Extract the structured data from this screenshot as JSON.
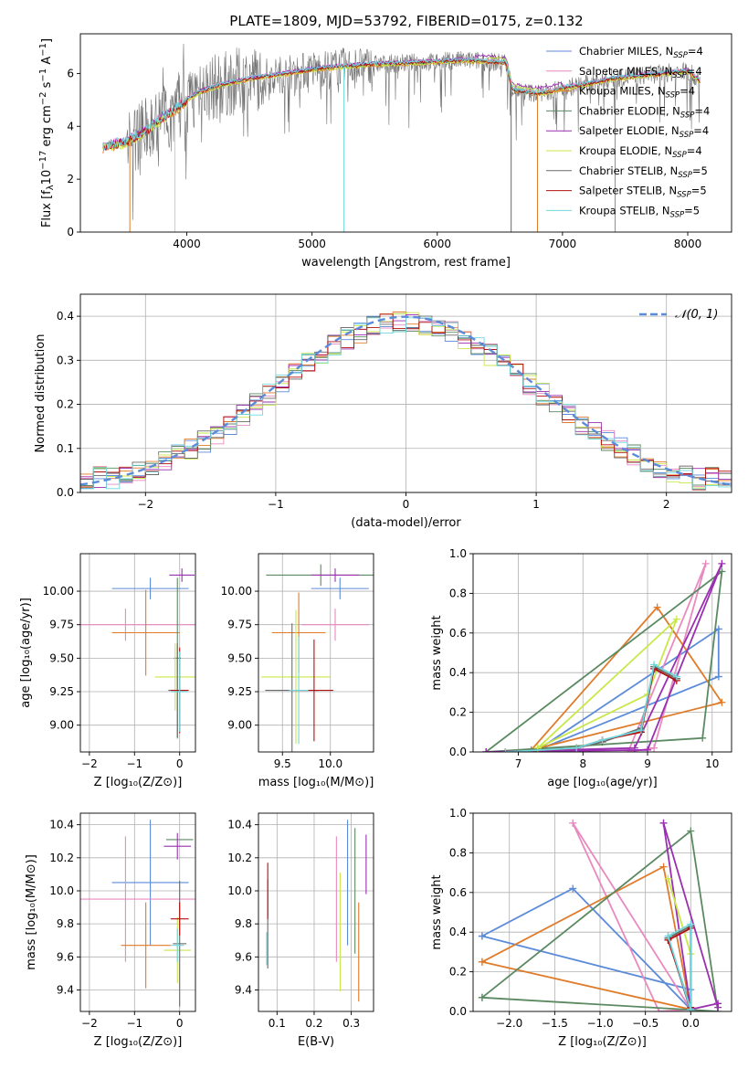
{
  "title": "PLATE=1809, MJD=53792, FIBERID=0175, z=0.132",
  "colors": {
    "chabrier_miles": "#5b8bd9",
    "salpeter_miles": "#e889c0",
    "kroupa_miles": "#e07b2a",
    "chabrier_elodie": "#5b8a62",
    "salpeter_elodie": "#9a2fb0",
    "kroupa_elodie": "#c8e84a",
    "chabrier_stelib": "#6a6a6a",
    "salpeter_stelib": "#b01010",
    "kroupa_stelib": "#6fd7dc",
    "normal_curve": "#5b8bd9"
  },
  "legend_spectrum": [
    {
      "name": "Chabrier MILES, N",
      "sub": "SSP",
      "tail": "=4",
      "color_key": "chabrier_miles"
    },
    {
      "name": "Salpeter MILES, N",
      "sub": "SSP",
      "tail": "=4",
      "color_key": "salpeter_miles"
    },
    {
      "name": "Kroupa MILES, N",
      "sub": "SSP",
      "tail": "=4",
      "color_key": "kroupa_miles"
    },
    {
      "name": "Chabrier ELODIE, N",
      "sub": "SSP",
      "tail": "=4",
      "color_key": "chabrier_elodie"
    },
    {
      "name": "Salpeter ELODIE, N",
      "sub": "SSP",
      "tail": "=4",
      "color_key": "salpeter_elodie"
    },
    {
      "name": "Kroupa ELODIE, N",
      "sub": "SSP",
      "tail": "=4",
      "color_key": "kroupa_elodie"
    },
    {
      "name": "Chabrier STELIB, N",
      "sub": "SSP",
      "tail": "=5",
      "color_key": "chabrier_stelib"
    },
    {
      "name": "Salpeter STELIB, N",
      "sub": "SSP",
      "tail": "=5",
      "color_key": "salpeter_stelib"
    },
    {
      "name": "Kroupa STELIB, N",
      "sub": "SSP",
      "tail": "=5",
      "color_key": "kroupa_stelib"
    }
  ],
  "legend_hist": {
    "label": "𝒩(0, 1)"
  },
  "chart_data": [
    {
      "id": "spectrum",
      "type": "line",
      "xlabel": "wavelength [Angstrom, rest frame]",
      "ylabel_parts": [
        "Flux [f",
        "λ",
        "10",
        "−17",
        " erg cm",
        "−2",
        " s",
        "−1",
        " A",
        "−1",
        "]"
      ],
      "xlim": [
        3150,
        8350
      ],
      "ylim": [
        0,
        7.5
      ],
      "xticks": [
        4000,
        5000,
        6000,
        7000,
        8000
      ],
      "yticks": [
        0,
        2,
        4,
        6
      ],
      "continuum": {
        "x": [
          3330,
          3400,
          3500,
          3600,
          3700,
          3800,
          3900,
          4000,
          4100,
          4300,
          4500,
          4800,
          5000,
          5200,
          5500,
          5800,
          6000,
          6200,
          6400,
          6550,
          6600,
          6700,
          6800,
          6900,
          7000,
          7200,
          7400,
          7600,
          7800,
          8000,
          8100
        ],
        "y": [
          3.2,
          3.3,
          3.4,
          3.6,
          3.9,
          4.3,
          4.6,
          5.0,
          5.3,
          5.6,
          5.8,
          6.0,
          6.15,
          6.25,
          6.35,
          6.4,
          6.45,
          6.5,
          6.45,
          6.4,
          5.4,
          5.3,
          5.25,
          5.3,
          5.45,
          5.6,
          5.8,
          5.9,
          6.0,
          6.1,
          5.7
        ]
      },
      "drops": [
        {
          "x": 3545,
          "series": "kroupa_miles"
        },
        {
          "x": 3905,
          "series": "kroupa_elodie"
        },
        {
          "x": 5255,
          "series": "kroupa_stelib"
        },
        {
          "x": 6590,
          "series": "chabrier_stelib"
        },
        {
          "x": 6800,
          "series": "kroupa_miles"
        },
        {
          "x": 7420,
          "series": "kroupa_miles"
        }
      ],
      "grid": false
    },
    {
      "id": "residuals",
      "type": "histogram",
      "xlabel": "(data-model)/error",
      "ylabel": "Normed distribution",
      "xlim": [
        -2.5,
        2.5
      ],
      "ylim": [
        0,
        0.45
      ],
      "xticks": [
        -2,
        -1,
        0,
        1,
        2
      ],
      "xtick_labels": [
        "−2",
        "−1",
        "0",
        "1",
        "2"
      ],
      "yticks": [
        0.0,
        0.1,
        0.2,
        0.3,
        0.4
      ],
      "ytick_labels": [
        "0.0",
        "0.1",
        "0.2",
        "0.3",
        "0.4"
      ],
      "bin_width": 0.1,
      "grid": true
    },
    {
      "id": "age_vs_Z",
      "type": "scatter",
      "xlabel": "Z [log₁₀(Z/Z⊙)]",
      "ylabel": "age  [log₁₀(age/yr)]",
      "xlim": [
        -2.2,
        0.35
      ],
      "ylim": [
        8.8,
        10.28
      ],
      "xticks": [
        -2,
        -1,
        0
      ],
      "xtick_labels": [
        "−2",
        "−1",
        "0"
      ],
      "yticks": [
        9.0,
        9.25,
        9.5,
        9.75,
        10.0
      ],
      "ytick_labels": [
        "9.00",
        "9.25",
        "9.50",
        "9.75",
        "10.00"
      ],
      "points": [
        {
          "s": "chabrier_miles",
          "x": -0.65,
          "xe": 0.85,
          "y": 10.02,
          "ye": 0.08
        },
        {
          "s": "salpeter_miles",
          "x": -1.2,
          "xe": 2.3,
          "y": 9.75,
          "ye": 0.12
        },
        {
          "s": "kroupa_miles",
          "x": -0.75,
          "xe": 0.75,
          "y": 9.69,
          "ye": 0.32
        },
        {
          "s": "chabrier_elodie",
          "x": -0.05,
          "xe": 0.08,
          "y": 9.5,
          "ye": 0.6
        },
        {
          "s": "salpeter_elodie",
          "x": 0.05,
          "xe": 0.28,
          "y": 10.12,
          "ye": 0.05
        },
        {
          "s": "kroupa_elodie",
          "x": -0.1,
          "xe": 0.45,
          "y": 9.36,
          "ye": 0.25
        },
        {
          "s": "chabrier_stelib",
          "x": -0.05,
          "xe": 0.2,
          "y": 9.26,
          "ye": 0.35
        },
        {
          "s": "salpeter_stelib",
          "x": 0.0,
          "xe": 0.2,
          "y": 9.26,
          "ye": 0.32
        },
        {
          "s": "kroupa_stelib",
          "x": 0.0,
          "xe": 0.18,
          "y": 9.25,
          "ye": 0.3
        }
      ],
      "grid": true
    },
    {
      "id": "age_vs_mass",
      "type": "scatter",
      "xlabel": "mass [log₁₀(M/M⊙)]",
      "ylabel": "",
      "xlim": [
        9.25,
        10.45
      ],
      "ylim": [
        8.8,
        10.28
      ],
      "xticks": [
        9.5,
        10.0
      ],
      "xtick_labels": [
        "9.5",
        "10.0"
      ],
      "yticks": [
        9.0,
        9.25,
        9.5,
        9.75,
        10.0
      ],
      "ytick_labels": [
        "9.00",
        "9.25",
        "9.50",
        "9.75",
        "10.00"
      ],
      "points": [
        {
          "s": "chabrier_miles",
          "x": 10.1,
          "xe": 0.3,
          "y": 10.02,
          "ye": 0.08
        },
        {
          "s": "salpeter_miles",
          "x": 10.05,
          "xe": 0.35,
          "y": 9.75,
          "ye": 0.12
        },
        {
          "s": "kroupa_miles",
          "x": 9.67,
          "xe": 0.28,
          "y": 9.69,
          "ye": 0.3
        },
        {
          "s": "chabrier_elodie",
          "x": 9.9,
          "xe": 0.57,
          "y": 10.12,
          "ye": 0.08
        },
        {
          "s": "salpeter_elodie",
          "x": 10.05,
          "xe": 0.25,
          "y": 10.12,
          "ye": 0.05
        },
        {
          "s": "kroupa_elodie",
          "x": 9.64,
          "xe": 0.36,
          "y": 9.36,
          "ye": 0.5
        },
        {
          "s": "chabrier_stelib",
          "x": 9.6,
          "xe": 0.28,
          "y": 9.26,
          "ye": 0.5
        },
        {
          "s": "salpeter_stelib",
          "x": 9.83,
          "xe": 0.2,
          "y": 9.26,
          "ye": 0.38
        },
        {
          "s": "kroupa_stelib",
          "x": 9.67,
          "xe": 0.1,
          "y": 9.26,
          "ye": 0.4
        }
      ],
      "grid": true
    },
    {
      "id": "massweight_vs_age",
      "type": "line",
      "xlabel": "age  [log₁₀(age/yr)]",
      "ylabel": "mass weight",
      "xlim": [
        6.3,
        10.3
      ],
      "ylim": [
        0,
        1
      ],
      "xticks": [
        7,
        8,
        9,
        10
      ],
      "yticks": [
        0,
        0.2,
        0.4,
        0.6,
        0.8,
        1.0
      ],
      "ytick_labels": [
        "0.0",
        "0.2",
        "0.4",
        "0.6",
        "0.8",
        "1.0"
      ],
      "series": [
        {
          "s": "chabrier_miles",
          "x": [
            7.3,
            10.1,
            10.1,
            7.3
          ],
          "y": [
            0.01,
            0.62,
            0.38,
            0.01
          ]
        },
        {
          "s": "salpeter_miles",
          "x": [
            8.7,
            9.9,
            9.1,
            8.7
          ],
          "y": [
            0.0,
            0.95,
            0.02,
            0.0
          ]
        },
        {
          "s": "kroupa_miles",
          "x": [
            7.2,
            9.15,
            10.15,
            7.2
          ],
          "y": [
            0.01,
            0.73,
            0.25,
            0.01
          ]
        },
        {
          "s": "chabrier_elodie",
          "x": [
            6.5,
            9.85,
            10.15,
            6.5
          ],
          "y": [
            0.0,
            0.07,
            0.91,
            0.0
          ]
        },
        {
          "s": "salpeter_elodie",
          "x": [
            6.5,
            8.8,
            10.15,
            9.0,
            6.5
          ],
          "y": [
            0.0,
            0.02,
            0.95,
            0.01,
            0.0
          ]
        },
        {
          "s": "kroupa_elodie",
          "x": [
            7.3,
            9.45,
            9.0,
            7.3
          ],
          "y": [
            0.02,
            0.67,
            0.29,
            0.02
          ]
        },
        {
          "s": "chabrier_stelib",
          "x": [
            6.8,
            7.9,
            8.3,
            8.9,
            9.1,
            9.45,
            9.45
          ],
          "y": [
            0.0,
            0.02,
            0.05,
            0.12,
            0.43,
            0.37,
            0.37
          ]
        },
        {
          "s": "salpeter_stelib",
          "x": [
            6.8,
            7.9,
            8.3,
            8.9,
            9.1,
            9.45
          ],
          "y": [
            0.0,
            0.02,
            0.06,
            0.1,
            0.42,
            0.36
          ]
        },
        {
          "s": "kroupa_stelib",
          "x": [
            6.8,
            7.9,
            8.3,
            8.9,
            9.1,
            9.45
          ],
          "y": [
            0.0,
            0.02,
            0.06,
            0.11,
            0.44,
            0.38
          ]
        }
      ],
      "grid": true
    },
    {
      "id": "mass_vs_Z",
      "type": "scatter",
      "xlabel": "Z [log₁₀(Z/Z⊙)]",
      "ylabel": "mass [log₁₀(M/M⊙)]",
      "xlim": [
        -2.2,
        0.35
      ],
      "ylim": [
        9.27,
        10.47
      ],
      "xticks": [
        -2,
        -1,
        0
      ],
      "xtick_labels": [
        "−2",
        "−1",
        "0"
      ],
      "yticks": [
        9.4,
        9.6,
        9.8,
        10.0,
        10.2,
        10.4
      ],
      "ytick_labels": [
        "9.4",
        "9.6",
        "9.8",
        "10.0",
        "10.2",
        "10.4"
      ],
      "points": [
        {
          "s": "chabrier_miles",
          "x": -0.65,
          "xe": 0.85,
          "y": 10.05,
          "ye": 0.38
        },
        {
          "s": "salpeter_miles",
          "x": -1.2,
          "xe": 2.3,
          "y": 9.95,
          "ye": 0.38
        },
        {
          "s": "kroupa_miles",
          "x": -0.75,
          "xe": 0.55,
          "y": 9.67,
          "ye": 0.26
        },
        {
          "s": "chabrier_elodie",
          "x": 0.0,
          "xe": 0.3,
          "y": 10.31,
          "ye": 0.0
        },
        {
          "s": "salpeter_elodie",
          "x": -0.05,
          "xe": 0.3,
          "y": 10.27,
          "ye": 0.08
        },
        {
          "s": "kroupa_elodie",
          "x": -0.05,
          "xe": 0.3,
          "y": 9.64,
          "ye": 0.2
        },
        {
          "s": "chabrier_stelib",
          "x": 0.0,
          "xe": 0.15,
          "y": 9.68,
          "ye": 0.38
        },
        {
          "s": "salpeter_stelib",
          "x": 0.0,
          "xe": 0.2,
          "y": 9.83,
          "ye": 0.1
        },
        {
          "s": "kroupa_stelib",
          "x": -0.05,
          "xe": 0.15,
          "y": 9.67,
          "ye": 0.1
        }
      ],
      "grid": true
    },
    {
      "id": "mass_vs_ebv",
      "type": "scatter",
      "xlabel": "E(B-V)",
      "ylabel": "",
      "xlim": [
        0.05,
        0.36
      ],
      "ylim": [
        9.27,
        10.47
      ],
      "xticks": [
        0.1,
        0.2,
        0.3
      ],
      "xtick_labels": [
        "0.1",
        "0.2",
        "0.3"
      ],
      "yticks": [
        9.4,
        9.6,
        9.8,
        10.0,
        10.2,
        10.4
      ],
      "ytick_labels": [
        "9.4",
        "9.6",
        "9.8",
        "10.0",
        "10.2",
        "10.4"
      ],
      "points": [
        {
          "s": "chabrier_miles",
          "x": 0.29,
          "xe": 0,
          "y": 10.05,
          "ye": 0.38
        },
        {
          "s": "salpeter_miles",
          "x": 0.26,
          "xe": 0,
          "y": 9.95,
          "ye": 0.38
        },
        {
          "s": "kroupa_miles",
          "x": 0.32,
          "xe": 0,
          "y": 9.63,
          "ye": 0.3
        },
        {
          "s": "chabrier_elodie",
          "x": 0.31,
          "xe": 0,
          "y": 10.0,
          "ye": 0.38
        },
        {
          "s": "salpeter_elodie",
          "x": 0.34,
          "xe": 0,
          "y": 10.16,
          "ye": 0.18
        },
        {
          "s": "kroupa_elodie",
          "x": 0.27,
          "xe": 0,
          "y": 9.75,
          "ye": 0.36
        },
        {
          "s": "chabrier_stelib",
          "x": 0.075,
          "xe": 0,
          "y": 9.8,
          "ye": 0.27
        },
        {
          "s": "salpeter_stelib",
          "x": 0.075,
          "xe": 0,
          "y": 10.0,
          "ye": 0.17
        },
        {
          "s": "kroupa_stelib",
          "x": 0.072,
          "xe": 0,
          "y": 9.65,
          "ye": 0.1
        }
      ],
      "grid": true
    },
    {
      "id": "massweight_vs_Z",
      "type": "line",
      "xlabel": "Z [log₁₀(Z/Z⊙)]",
      "ylabel": "mass weight",
      "xlim": [
        -2.4,
        0.45
      ],
      "ylim": [
        0,
        1
      ],
      "xticks": [
        -2.0,
        -1.5,
        -1.0,
        -0.5,
        0.0
      ],
      "xtick_labels": [
        "−2.0",
        "−1.5",
        "−1.0",
        "−0.5",
        "0.0"
      ],
      "yticks": [
        0,
        0.2,
        0.4,
        0.6,
        0.8,
        1.0
      ],
      "ytick_labels": [
        "0.0",
        "0.2",
        "0.4",
        "0.6",
        "0.8",
        "1.0"
      ],
      "series": [
        {
          "s": "chabrier_miles",
          "x": [
            -2.3,
            -1.3,
            0.0,
            0.0,
            -2.3
          ],
          "y": [
            0.38,
            0.62,
            0.01,
            0.11,
            0.38
          ]
        },
        {
          "s": "salpeter_miles",
          "x": [
            -1.3,
            -0.35,
            0.0,
            -1.3
          ],
          "y": [
            0.95,
            0.0,
            0.01,
            0.95
          ]
        },
        {
          "s": "kroupa_miles",
          "x": [
            -2.3,
            -0.3,
            0.0,
            -2.3
          ],
          "y": [
            0.25,
            0.73,
            0.01,
            0.25
          ]
        },
        {
          "s": "chabrier_elodie",
          "x": [
            -2.3,
            0.0,
            0.3,
            -2.3
          ],
          "y": [
            0.07,
            0.91,
            0.0,
            0.07
          ]
        },
        {
          "s": "salpeter_elodie",
          "x": [
            -0.3,
            0.0,
            0.3,
            0.3,
            -0.3
          ],
          "y": [
            0.95,
            0.01,
            0.04,
            0.02,
            0.95
          ]
        },
        {
          "s": "kroupa_elodie",
          "x": [
            -0.25,
            0.0,
            -0.25
          ],
          "y": [
            0.67,
            0.29,
            0.67
          ]
        },
        {
          "s": "chabrier_stelib",
          "x": [
            -0.25,
            0.0,
            0.0,
            -0.25
          ],
          "y": [
            0.37,
            0.43,
            0.0,
            0.37
          ]
        },
        {
          "s": "salpeter_stelib",
          "x": [
            -0.25,
            0.0,
            0.0,
            -0.25
          ],
          "y": [
            0.36,
            0.42,
            0.02,
            0.36
          ]
        },
        {
          "s": "kroupa_stelib",
          "x": [
            -0.25,
            0.0,
            0.0,
            -0.25
          ],
          "y": [
            0.38,
            0.44,
            0.01,
            0.38
          ]
        }
      ],
      "grid": true
    }
  ]
}
